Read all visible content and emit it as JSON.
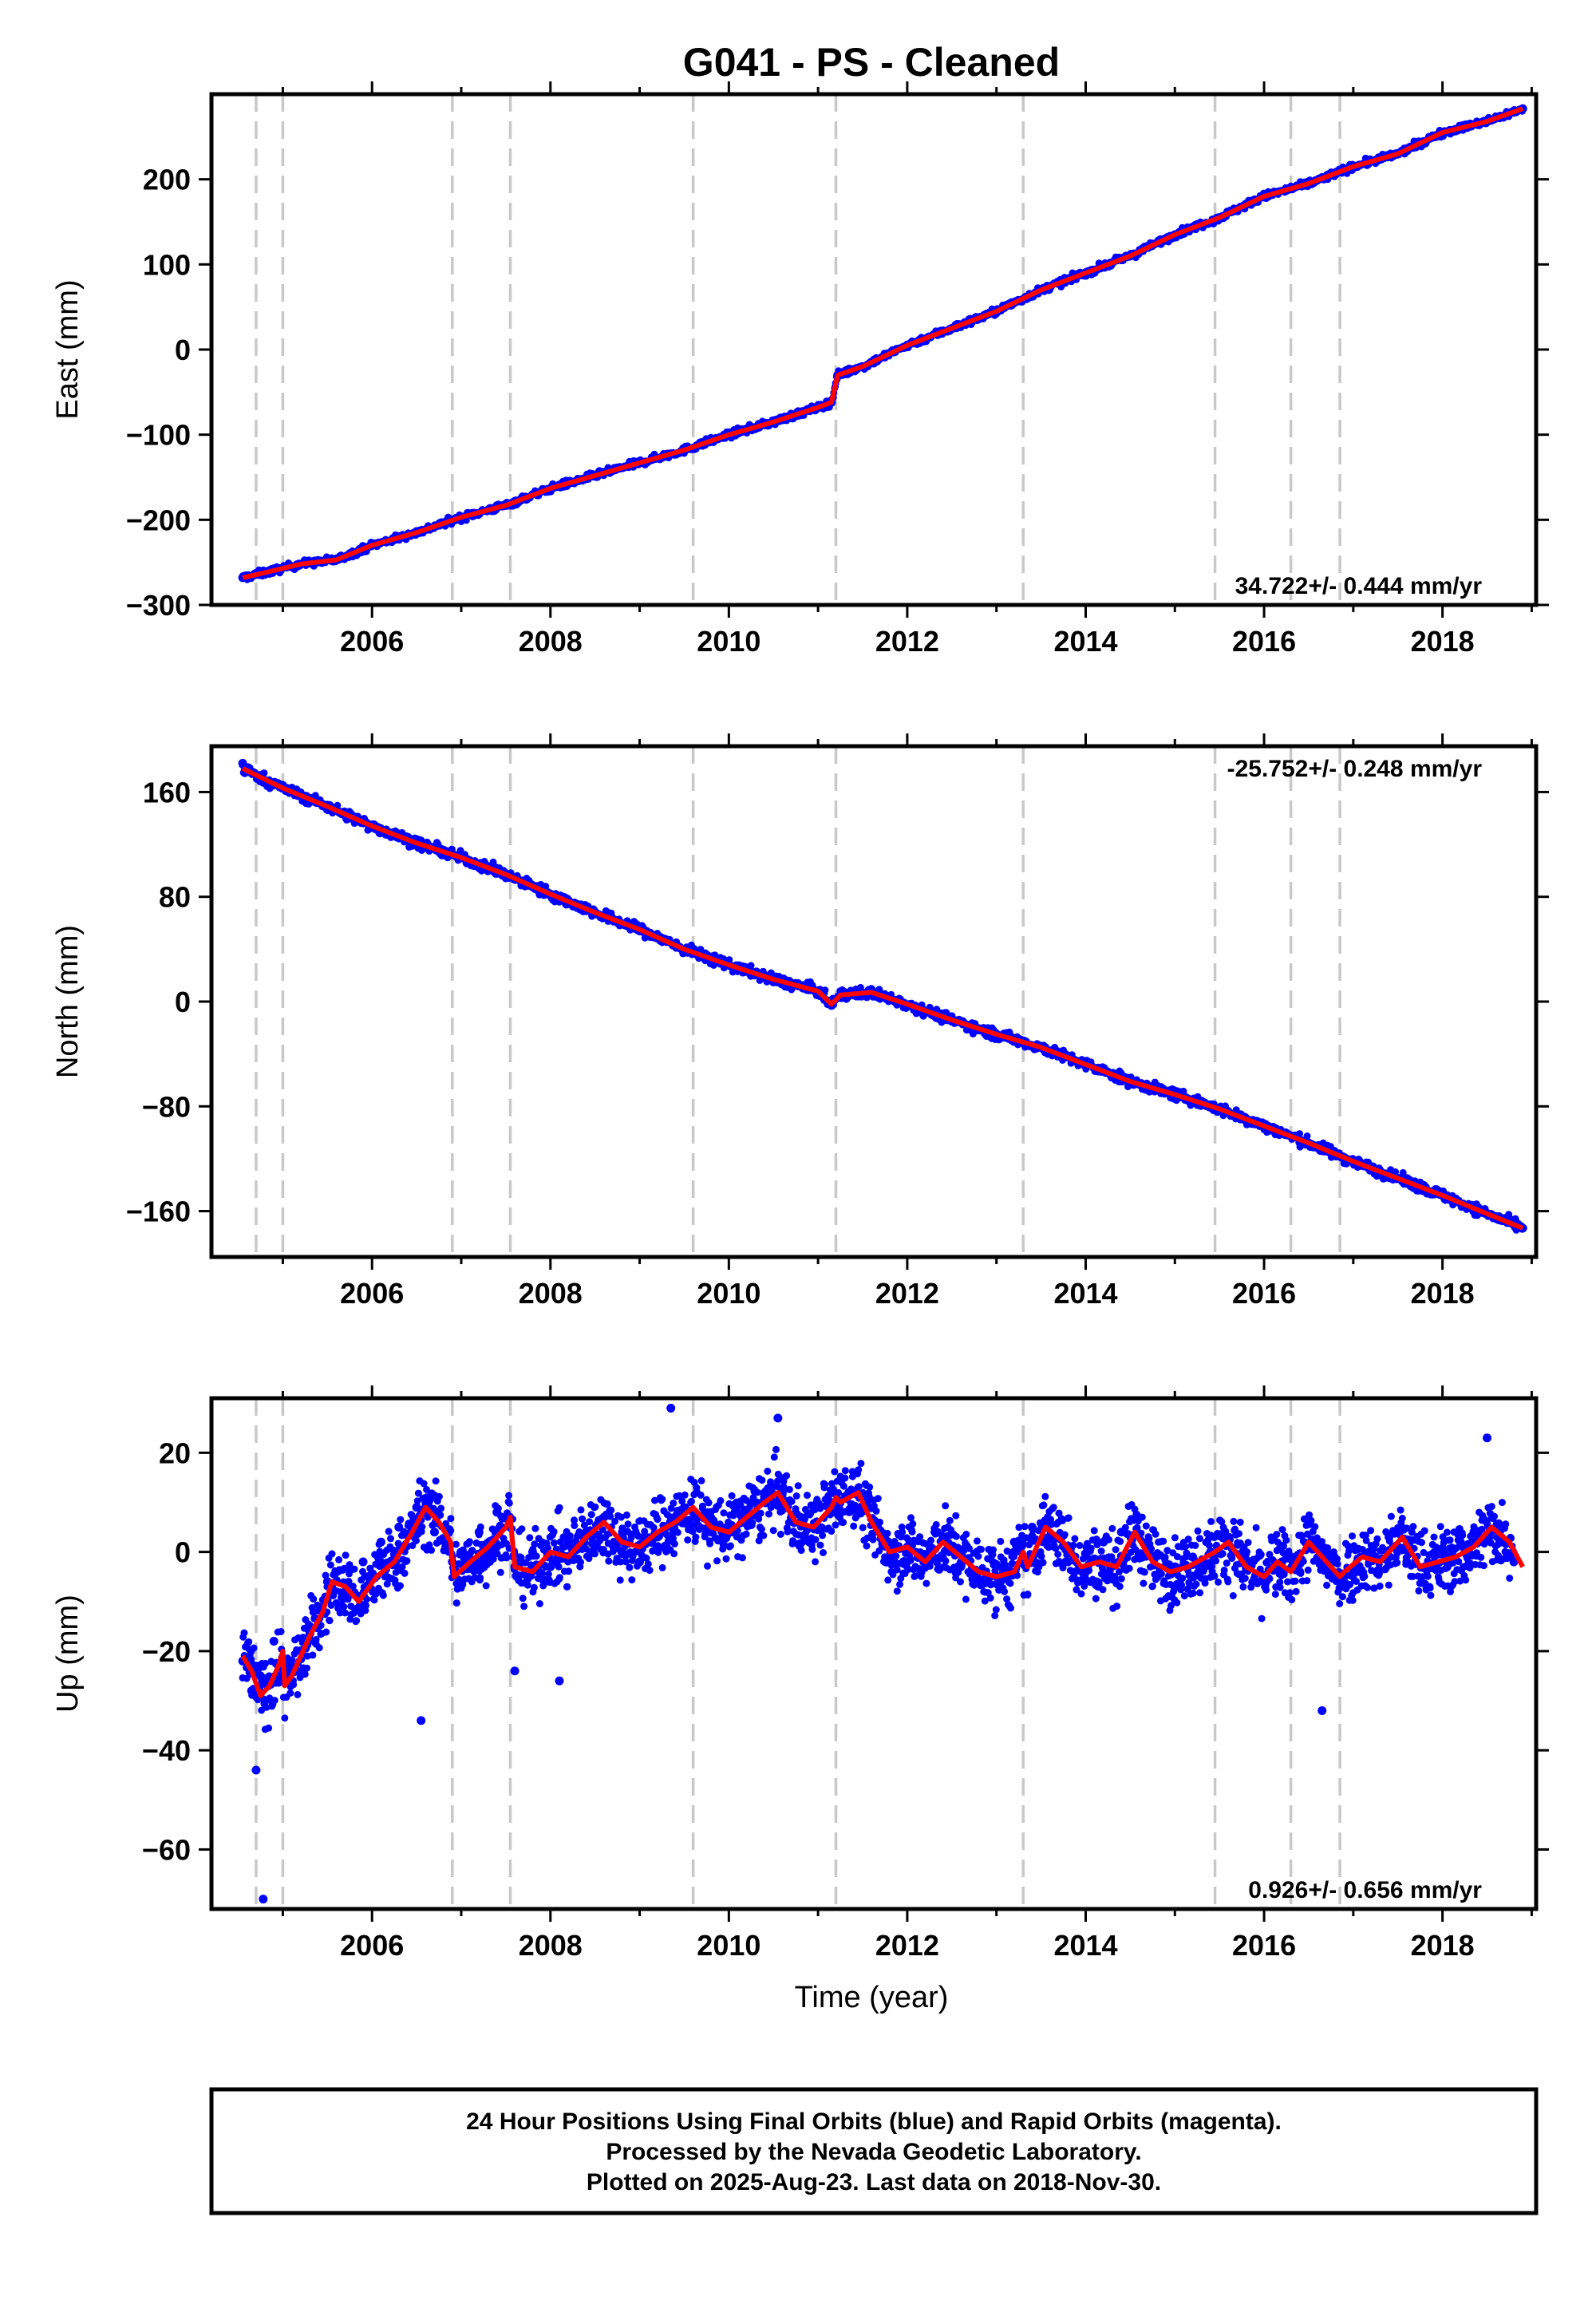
{
  "title": "G041  - PS - Cleaned",
  "colors": {
    "final_orbits": "#0000ff",
    "fit": "#ff0000",
    "event_lines": "#c8c8c8",
    "frame": "#000000"
  },
  "footer": {
    "line1": "24 Hour Positions Using Final Orbits (blue) and Rapid Orbits (magenta).",
    "line2": "Processed by the Nevada Geodetic Laboratory.",
    "line3": "Plotted on 2025-Aug-23. Last data on 2018-Nov-30."
  },
  "chart_data": [
    {
      "type": "scatter",
      "ylabel": "East (mm)",
      "xlabel": "",
      "xlim": [
        2004.2,
        2019.05
      ],
      "ylim": [
        -300,
        300
      ],
      "xticks": [
        2006,
        2008,
        2010,
        2012,
        2014,
        2016,
        2018
      ],
      "yticks": [
        -300,
        -200,
        -100,
        0,
        100,
        200
      ],
      "rate_text": "34.722+/- 0.444 mm/yr",
      "rate_position": "bottom-right",
      "event_lines": [
        2004.7,
        2005.0,
        2006.9,
        2007.55,
        2009.6,
        2011.2,
        2013.3,
        2015.45,
        2016.3,
        2016.85
      ],
      "series": [
        {
          "name": "Final Orbits",
          "style": "points",
          "x": [
            2004.55,
            2004.8,
            2005.2,
            2005.6,
            2006.0,
            2006.5,
            2007.0,
            2007.5,
            2008.0,
            2008.5,
            2009.0,
            2009.5,
            2010.0,
            2010.5,
            2011.0,
            2011.15,
            2011.22,
            2011.5,
            2012.0,
            2012.5,
            2013.0,
            2013.5,
            2014.0,
            2014.5,
            2015.0,
            2015.5,
            2016.0,
            2016.5,
            2017.0,
            2017.5,
            2018.0,
            2018.5,
            2018.9
          ],
          "y": [
            -268,
            -262,
            -252,
            -247,
            -230,
            -215,
            -197,
            -183,
            -163,
            -148,
            -133,
            -118,
            -100,
            -85,
            -68,
            -62,
            -30,
            -20,
            5,
            25,
            45,
            70,
            90,
            110,
            135,
            155,
            180,
            195,
            215,
            230,
            255,
            268,
            283
          ]
        },
        {
          "name": "Fit",
          "style": "line",
          "x": [
            2004.55,
            2004.8,
            2005.2,
            2005.6,
            2006.0,
            2006.5,
            2007.0,
            2007.5,
            2008.0,
            2008.5,
            2009.0,
            2009.5,
            2010.0,
            2010.5,
            2011.0,
            2011.15,
            2011.22,
            2011.5,
            2012.0,
            2012.5,
            2013.0,
            2013.5,
            2014.0,
            2014.5,
            2015.0,
            2015.5,
            2016.0,
            2016.5,
            2017.0,
            2017.5,
            2018.0,
            2018.5,
            2018.9
          ],
          "y": [
            -268,
            -262,
            -252,
            -247,
            -230,
            -215,
            -197,
            -183,
            -163,
            -148,
            -133,
            -118,
            -100,
            -85,
            -68,
            -62,
            -30,
            -20,
            5,
            25,
            45,
            70,
            90,
            110,
            135,
            155,
            180,
            195,
            215,
            230,
            255,
            268,
            283
          ]
        }
      ]
    },
    {
      "type": "scatter",
      "ylabel": "North (mm)",
      "xlabel": "",
      "xlim": [
        2004.2,
        2019.05
      ],
      "ylim": [
        -195,
        195
      ],
      "xticks": [
        2006,
        2008,
        2010,
        2012,
        2014,
        2016,
        2018
      ],
      "yticks": [
        -160,
        -80,
        0,
        80,
        160
      ],
      "rate_text": "-25.752+/- 0.248 mm/yr",
      "rate_position": "top-right",
      "event_lines": [
        2004.7,
        2005.0,
        2006.9,
        2007.55,
        2009.6,
        2011.2,
        2013.3,
        2015.45,
        2016.3,
        2016.85
      ],
      "series": [
        {
          "name": "Final Orbits",
          "style": "points",
          "x": [
            2004.55,
            2005.0,
            2005.5,
            2006.0,
            2006.5,
            2007.0,
            2007.5,
            2008.0,
            2008.5,
            2009.0,
            2009.5,
            2010.0,
            2010.5,
            2011.0,
            2011.15,
            2011.25,
            2011.6,
            2012.0,
            2012.5,
            2013.0,
            2013.5,
            2014.0,
            2014.5,
            2015.0,
            2015.5,
            2016.0,
            2016.5,
            2017.0,
            2017.5,
            2018.0,
            2018.5,
            2018.9
          ],
          "y": [
            182,
            165,
            150,
            135,
            120,
            110,
            97,
            82,
            68,
            55,
            40,
            28,
            15,
            8,
            -3,
            5,
            8,
            -3,
            -15,
            -25,
            -35,
            -48,
            -62,
            -72,
            -82,
            -95,
            -108,
            -122,
            -135,
            -148,
            -162,
            -173
          ]
        },
        {
          "name": "Fit",
          "style": "line",
          "x": [
            2004.55,
            2005.0,
            2005.5,
            2006.0,
            2006.5,
            2007.0,
            2007.5,
            2008.0,
            2008.5,
            2009.0,
            2009.5,
            2010.0,
            2010.5,
            2011.0,
            2011.15,
            2011.25,
            2011.6,
            2012.0,
            2012.5,
            2013.0,
            2013.5,
            2014.0,
            2014.5,
            2015.0,
            2015.5,
            2016.0,
            2016.5,
            2017.0,
            2017.5,
            2018.0,
            2018.5,
            2018.9
          ],
          "y": [
            178,
            163,
            149,
            134,
            121,
            110,
            97,
            82,
            68,
            55,
            40,
            28,
            17,
            8,
            -2,
            5,
            7,
            -2,
            -14,
            -25,
            -35,
            -48,
            -61,
            -71,
            -82,
            -95,
            -108,
            -122,
            -135,
            -148,
            -162,
            -173
          ]
        }
      ]
    },
    {
      "type": "scatter",
      "ylabel": "Up (mm)",
      "xlabel": "Time (year)",
      "xlim": [
        2004.2,
        2019.05
      ],
      "ylim": [
        -72,
        31
      ],
      "xticks": [
        2006,
        2008,
        2010,
        2012,
        2014,
        2016,
        2018
      ],
      "yticks": [
        -60,
        -40,
        -20,
        0,
        20
      ],
      "rate_text": "0.926+/- 0.656 mm/yr",
      "rate_position": "bottom-right",
      "event_lines": [
        2004.7,
        2005.0,
        2006.9,
        2007.55,
        2009.6,
        2011.2,
        2013.3,
        2015.45,
        2016.3,
        2016.85
      ],
      "series": [
        {
          "name": "Final Orbits",
          "style": "points",
          "x": [
            2004.55,
            2004.65,
            2004.75,
            2004.8,
            2004.9,
            2005.0,
            2005.1,
            2005.3,
            2005.5,
            2005.7,
            2005.9,
            2006.1,
            2006.3,
            2006.5,
            2006.7,
            2006.9,
            2007.0,
            2007.2,
            2007.4,
            2007.6,
            2007.8,
            2008.0,
            2008.2,
            2008.4,
            2008.6,
            2008.8,
            2009.0,
            2009.2,
            2009.4,
            2009.6,
            2009.8,
            2010.0,
            2010.2,
            2010.4,
            2010.6,
            2010.8,
            2011.0,
            2011.2,
            2011.4,
            2011.6,
            2011.8,
            2012.0,
            2012.2,
            2012.4,
            2012.6,
            2012.8,
            2013.0,
            2013.2,
            2013.4,
            2013.6,
            2013.8,
            2014.0,
            2014.2,
            2014.4,
            2014.6,
            2014.8,
            2015.0,
            2015.2,
            2015.4,
            2015.6,
            2015.8,
            2016.0,
            2016.2,
            2016.4,
            2016.6,
            2016.8,
            2017.0,
            2017.2,
            2017.4,
            2017.6,
            2017.8,
            2018.0,
            2018.2,
            2018.4,
            2018.6,
            2018.8,
            2004.7,
            2004.78,
            2006.55,
            2007.6,
            2008.1,
            2009.35,
            2010.55,
            2016.65,
            2018.5
          ],
          "y": [
            -22,
            -28,
            -25,
            -30,
            -18,
            -24,
            -26,
            -15,
            -6,
            -8,
            -2,
            2,
            5,
            9,
            4,
            -2,
            0,
            4,
            8,
            -3,
            0,
            -3,
            2,
            4,
            7,
            0,
            -2,
            3,
            6,
            8,
            4,
            5,
            7,
            10,
            12,
            6,
            5,
            9,
            12,
            3,
            -2,
            1,
            -1,
            3,
            -3,
            -4,
            -5,
            2,
            5,
            3,
            -2,
            -4,
            2,
            4,
            -1,
            -5,
            -3,
            -1,
            0,
            3,
            -3,
            -5,
            -2,
            -4,
            2,
            -5,
            -4,
            0,
            3,
            -2,
            -3,
            0,
            2,
            4,
            5,
            -2,
            -44,
            -70,
            -34,
            -24,
            -26,
            29,
            27,
            -32,
            23
          ]
        },
        {
          "name": "Fit",
          "style": "line",
          "x": [
            2004.55,
            2004.65,
            2004.75,
            2004.85,
            2004.95,
            2005.0,
            2005.02,
            2005.1,
            2005.2,
            2005.3,
            2005.45,
            2005.55,
            2005.7,
            2005.85,
            2006.05,
            2006.25,
            2006.45,
            2006.6,
            2006.75,
            2006.88,
            2006.92,
            2007.1,
            2007.3,
            2007.5,
            2007.55,
            2007.6,
            2007.8,
            2008.0,
            2008.2,
            2008.4,
            2008.6,
            2008.8,
            2009.0,
            2009.2,
            2009.4,
            2009.6,
            2009.8,
            2010.0,
            2010.2,
            2010.4,
            2010.55,
            2010.75,
            2010.95,
            2011.15,
            2011.2,
            2011.25,
            2011.45,
            2011.6,
            2011.8,
            2012.0,
            2012.2,
            2012.4,
            2012.6,
            2012.8,
            2013.0,
            2013.2,
            2013.3,
            2013.35,
            2013.55,
            2013.75,
            2013.95,
            2014.15,
            2014.35,
            2014.55,
            2014.75,
            2014.95,
            2015.15,
            2015.35,
            2015.45,
            2015.6,
            2015.8,
            2016.0,
            2016.15,
            2016.3,
            2016.5,
            2016.7,
            2016.85,
            2016.9,
            2017.1,
            2017.3,
            2017.55,
            2017.75,
            2017.95,
            2018.15,
            2018.35,
            2018.55,
            2018.75,
            2018.9
          ],
          "y": [
            -21,
            -24,
            -29,
            -27,
            -23,
            -20,
            -27,
            -25,
            -21,
            -17,
            -12,
            -6,
            -7,
            -10,
            -5,
            -2,
            4,
            9,
            6,
            2,
            -5,
            -2,
            1,
            5,
            7,
            -3,
            -4,
            0,
            -1,
            3,
            6,
            2,
            1,
            4,
            6,
            9,
            5,
            4,
            7,
            10,
            12,
            6,
            5,
            9,
            11,
            10,
            12,
            6,
            0,
            1,
            -2,
            2,
            -1,
            -4,
            -5,
            -4,
            0,
            -3,
            5,
            2,
            -3,
            -2,
            -3,
            4,
            -2,
            -4,
            -3,
            -1,
            0,
            2,
            -3,
            -5,
            -2,
            -4,
            2,
            -2,
            -5,
            -4,
            -1,
            -2,
            3,
            -3,
            -2,
            -1,
            1,
            5,
            2,
            -3
          ]
        }
      ]
    }
  ]
}
